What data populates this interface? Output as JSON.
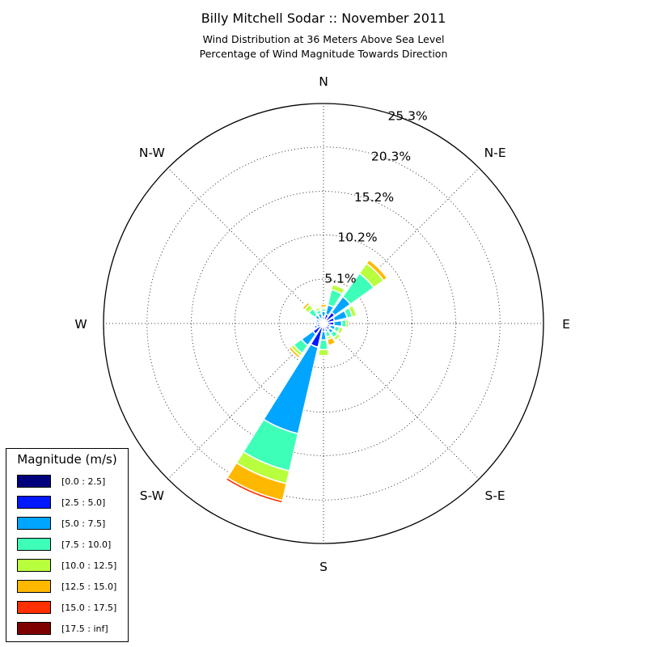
{
  "chart_data": {
    "type": "windrose",
    "title": "Billy Mitchell Sodar :: November 2011",
    "subtitle_line1": "Wind Distribution at 36 Meters Above Sea Level",
    "subtitle_line2": "Percentage of Wind Magnitude Towards Direction",
    "direction_labels": [
      "N",
      "N-E",
      "E",
      "S-E",
      "S",
      "S-W",
      "W",
      "N-W"
    ],
    "radial_ticks": [
      "5.1%",
      "10.2%",
      "15.2%",
      "20.3%",
      "25.3%"
    ],
    "radial_max": 25.3,
    "grid": true,
    "legend_title": "Magnitude (m/s)",
    "legend_position": "bottom-left",
    "bins": [
      {
        "label": "[0.0 : 2.5]",
        "color": "#00007f"
      },
      {
        "label": "[2.5 : 5.0]",
        "color": "#0019ff"
      },
      {
        "label": "[5.0 : 7.5]",
        "color": "#00a5ff"
      },
      {
        "label": "[7.5 : 10.0]",
        "color": "#3effb8"
      },
      {
        "label": "[10.0 : 12.5]",
        "color": "#b8ff3e"
      },
      {
        "label": "[12.5 : 15.0]",
        "color": "#ffb800"
      },
      {
        "label": "[15.0 : 17.5]",
        "color": "#ff3000"
      },
      {
        "label": "[17.5 : inf]",
        "color": "#7f0000"
      }
    ],
    "sectors": [
      {
        "dir": 0,
        "values": [
          0.2,
          0.6,
          0.6,
          0.3,
          0.2,
          0.3,
          0,
          0
        ]
      },
      {
        "dir": 22.5,
        "values": [
          0.3,
          0.8,
          1.1,
          1.8,
          0.6,
          0,
          0,
          0
        ]
      },
      {
        "dir": 45,
        "values": [
          0.3,
          1.3,
          2.2,
          3.3,
          1.4,
          0.5,
          0,
          0
        ]
      },
      {
        "dir": 67.5,
        "values": [
          0.3,
          1.0,
          1.5,
          0.6,
          0.5,
          0,
          0,
          0
        ]
      },
      {
        "dir": 90,
        "values": [
          0.3,
          0.9,
          0.9,
          0.5,
          0.3,
          0,
          0,
          0
        ]
      },
      {
        "dir": 112.5,
        "values": [
          0.2,
          0.6,
          0.6,
          0.5,
          0.4,
          0,
          0,
          0
        ]
      },
      {
        "dir": 135,
        "values": [
          0.2,
          0.7,
          0.5,
          0.6,
          0.4,
          0,
          0,
          0
        ]
      },
      {
        "dir": 157.5,
        "values": [
          0.2,
          0.5,
          0.3,
          0.6,
          0.3,
          0.7,
          0,
          0
        ]
      },
      {
        "dir": 180,
        "values": [
          0.2,
          0.7,
          1.0,
          1.1,
          0.7,
          0,
          0,
          0
        ]
      },
      {
        "dir": 202.5,
        "values": [
          0.3,
          2.5,
          10.2,
          4.4,
          1.5,
          2.0,
          0.3,
          0
        ]
      },
      {
        "dir": 225,
        "values": [
          0.3,
          1.2,
          1.6,
          1.1,
          0.4,
          0.3,
          0,
          0
        ]
      },
      {
        "dir": 247.5,
        "values": [
          0.2,
          0.6,
          0.3,
          0,
          0,
          0,
          0,
          0
        ]
      },
      {
        "dir": 270,
        "values": [
          0.2,
          0.5,
          0,
          0,
          0,
          0,
          0,
          0
        ]
      },
      {
        "dir": 292.5,
        "values": [
          0.1,
          0.4,
          0.4,
          0,
          0,
          0,
          0,
          0
        ]
      },
      {
        "dir": 315,
        "values": [
          0.2,
          0.5,
          0.5,
          0.9,
          0.6,
          0.3,
          0,
          0
        ]
      },
      {
        "dir": 337.5,
        "values": [
          0.2,
          0.4,
          0.6,
          0.4,
          0.3,
          0,
          0,
          0
        ]
      }
    ]
  }
}
